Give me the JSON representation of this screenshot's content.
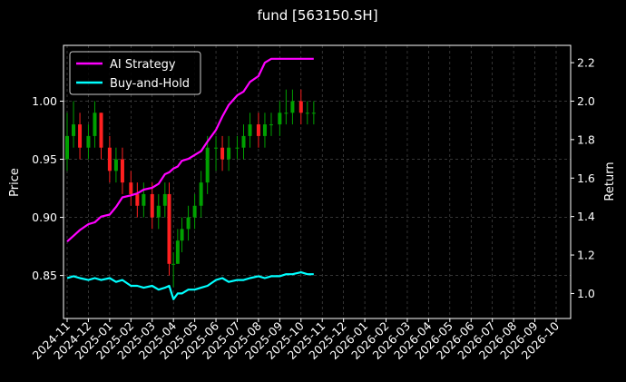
{
  "chart_data": {
    "type": "line",
    "title": "fund [563150.SH]",
    "xlabel": "",
    "ylabel_left": "Price",
    "ylabel_right": "Return",
    "x_categories": [
      "2024-11",
      "2024-12",
      "2025-01",
      "2025-02",
      "2025-03",
      "2025-04",
      "2025-05",
      "2025-06",
      "2025-07",
      "2025-08",
      "2025-09",
      "2025-10",
      "2025-11",
      "2025-12",
      "2026-01",
      "2026-02",
      "2026-03",
      "2026-04",
      "2026-05",
      "2026-06",
      "2026-07",
      "2026-08",
      "2026-09",
      "2026-10"
    ],
    "ylim_left": [
      0.813,
      1.048
    ],
    "ylim_right": [
      0.87,
      2.29
    ],
    "yticks_left": [
      "0.85",
      "0.90",
      "0.95",
      "1.00"
    ],
    "yticks_right": [
      "1.0",
      "1.2",
      "1.4",
      "1.6",
      "1.8",
      "2.0",
      "2.2"
    ],
    "grid": true,
    "legend_position": "top-left",
    "colors": {
      "background": "#000000",
      "ai_strategy": "#ff00ff",
      "buy_and_hold": "#00ffff",
      "candle_up": "#00a000",
      "candle_down": "#ff2020"
    },
    "series": [
      {
        "name": "AI Strategy",
        "axis": "right",
        "x": [
          0.0,
          0.3,
          0.6,
          1.0,
          1.3,
          1.6,
          2.0,
          2.3,
          2.6,
          3.0,
          3.3,
          3.6,
          4.0,
          4.3,
          4.6,
          4.8,
          5.0,
          5.2,
          5.4,
          5.7,
          6.0,
          6.3,
          6.6,
          7.0,
          7.3,
          7.6,
          8.0,
          8.3,
          8.6,
          9.0,
          9.3,
          9.6,
          10.0,
          10.3,
          10.6,
          11.0,
          11.3,
          11.6
        ],
        "values": [
          1.27,
          1.3,
          1.33,
          1.36,
          1.37,
          1.4,
          1.41,
          1.45,
          1.5,
          1.51,
          1.52,
          1.54,
          1.55,
          1.57,
          1.62,
          1.63,
          1.65,
          1.66,
          1.69,
          1.7,
          1.72,
          1.74,
          1.79,
          1.85,
          1.92,
          1.98,
          2.03,
          2.05,
          2.1,
          2.13,
          2.2,
          2.22,
          2.22,
          2.22,
          2.22,
          2.22,
          2.22,
          2.22
        ]
      },
      {
        "name": "Buy-and-Hold",
        "axis": "right",
        "x": [
          0.0,
          0.3,
          0.6,
          1.0,
          1.3,
          1.6,
          2.0,
          2.3,
          2.6,
          3.0,
          3.3,
          3.6,
          4.0,
          4.3,
          4.6,
          4.8,
          5.0,
          5.2,
          5.4,
          5.7,
          6.0,
          6.3,
          6.6,
          7.0,
          7.3,
          7.6,
          8.0,
          8.3,
          8.6,
          9.0,
          9.3,
          9.6,
          10.0,
          10.3,
          10.6,
          11.0,
          11.3,
          11.6
        ],
        "values": [
          1.08,
          1.09,
          1.08,
          1.07,
          1.08,
          1.07,
          1.08,
          1.06,
          1.07,
          1.04,
          1.04,
          1.03,
          1.04,
          1.02,
          1.03,
          1.04,
          0.97,
          1.0,
          1.0,
          1.02,
          1.02,
          1.03,
          1.04,
          1.07,
          1.08,
          1.06,
          1.07,
          1.07,
          1.08,
          1.09,
          1.08,
          1.09,
          1.09,
          1.1,
          1.1,
          1.11,
          1.1,
          1.1
        ]
      }
    ],
    "candles": {
      "name": "Price",
      "axis": "left",
      "x": [
        0.0,
        0.3,
        0.6,
        1.0,
        1.3,
        1.6,
        2.0,
        2.3,
        2.6,
        3.0,
        3.3,
        3.6,
        4.0,
        4.3,
        4.6,
        4.8,
        5.0,
        5.2,
        5.4,
        5.7,
        6.0,
        6.3,
        6.6,
        7.0,
        7.3,
        7.6,
        8.0,
        8.3,
        8.6,
        9.0,
        9.3,
        9.6,
        10.0,
        10.3,
        10.6,
        11.0,
        11.3,
        11.6
      ],
      "open": [
        0.95,
        0.97,
        0.98,
        0.96,
        0.97,
        0.99,
        0.96,
        0.94,
        0.95,
        0.93,
        0.92,
        0.91,
        0.92,
        0.9,
        0.91,
        0.92,
        0.86,
        0.86,
        0.88,
        0.89,
        0.9,
        0.91,
        0.93,
        0.96,
        0.96,
        0.95,
        0.96,
        0.96,
        0.97,
        0.98,
        0.97,
        0.98,
        0.98,
        0.99,
        0.99,
        1.0,
        0.99,
        0.99
      ],
      "close": [
        0.97,
        0.98,
        0.96,
        0.97,
        0.99,
        0.96,
        0.94,
        0.95,
        0.93,
        0.92,
        0.91,
        0.92,
        0.9,
        0.91,
        0.92,
        0.86,
        0.86,
        0.88,
        0.89,
        0.9,
        0.91,
        0.93,
        0.96,
        0.96,
        0.95,
        0.96,
        0.96,
        0.97,
        0.98,
        0.97,
        0.98,
        0.98,
        0.99,
        0.99,
        1.0,
        0.99,
        0.99,
        0.99
      ],
      "high": [
        0.99,
        1.0,
        0.99,
        0.98,
        1.0,
        0.99,
        0.97,
        0.96,
        0.96,
        0.94,
        0.93,
        0.93,
        0.93,
        0.92,
        0.93,
        0.93,
        0.87,
        0.89,
        0.9,
        0.91,
        0.92,
        0.94,
        0.97,
        0.97,
        0.97,
        0.97,
        0.97,
        0.98,
        0.99,
        0.99,
        0.99,
        0.99,
        1.0,
        1.01,
        1.01,
        1.01,
        1.0,
        1.0
      ],
      "low": [
        0.94,
        0.96,
        0.95,
        0.95,
        0.96,
        0.95,
        0.93,
        0.93,
        0.92,
        0.91,
        0.9,
        0.9,
        0.89,
        0.89,
        0.9,
        0.85,
        0.84,
        0.86,
        0.87,
        0.88,
        0.89,
        0.9,
        0.92,
        0.94,
        0.94,
        0.94,
        0.95,
        0.95,
        0.96,
        0.96,
        0.96,
        0.97,
        0.97,
        0.98,
        0.98,
        0.98,
        0.98,
        0.98
      ]
    }
  }
}
